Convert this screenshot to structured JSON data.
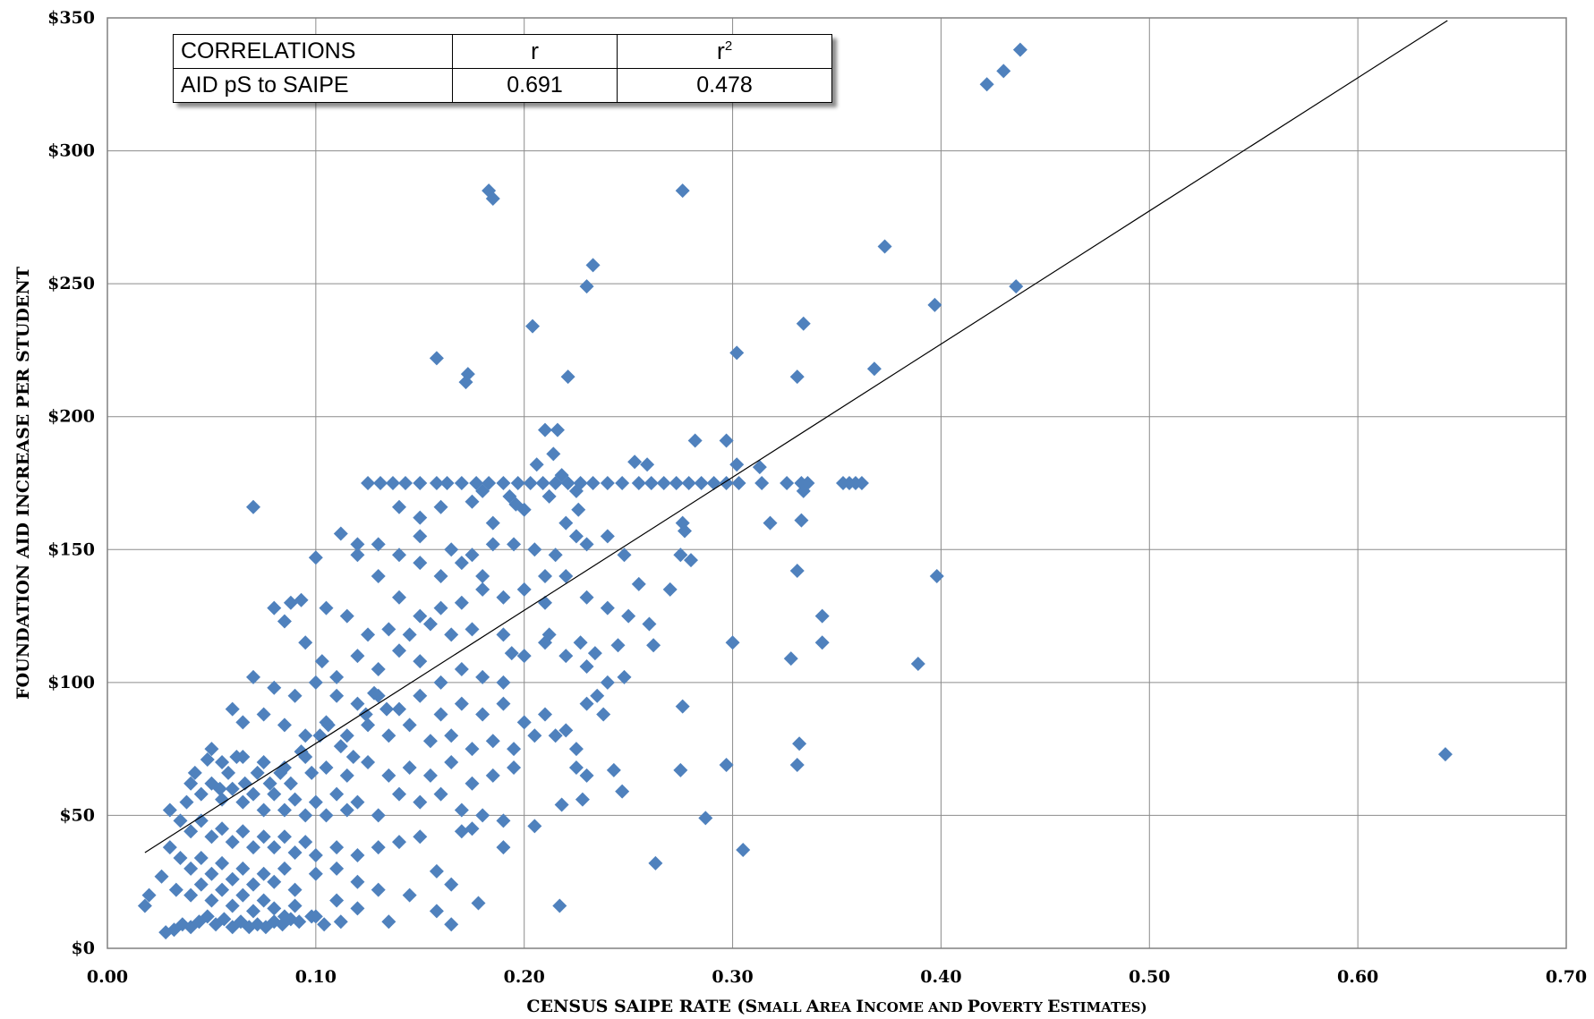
{
  "correlations": {
    "header": {
      "label": "CORRELATIONS",
      "r_symbol": "r",
      "r2_base": "r",
      "r2_exp": "2"
    },
    "row": {
      "label": "AID pS to SAIPE",
      "r": "0.691",
      "r2": "0.478"
    }
  },
  "chart_data": {
    "type": "scatter",
    "title": "",
    "xlabel_parts": [
      "CENSUS SAIPE RATE (",
      "S",
      "MALL ",
      "A",
      "REA ",
      "I",
      "NCOME AND ",
      "P",
      "OVERTY ",
      "E",
      "STIMATES)"
    ],
    "ylabel": "FOUNDATION AID INCREASE PER STUDENT",
    "xlim": [
      0,
      0.7
    ],
    "ylim": [
      0,
      350
    ],
    "x_ticks": [
      "0.00",
      "0.10",
      "0.20",
      "0.30",
      "0.40",
      "0.50",
      "0.60",
      "0.70"
    ],
    "y_ticks": [
      "$0",
      "$50",
      "$100",
      "$150",
      "$200",
      "$250",
      "$300",
      "$350"
    ],
    "grid": true,
    "marker_color": "#4F81BD",
    "trendline": {
      "x": [
        0.018,
        0.643
      ],
      "y": [
        36,
        349
      ]
    },
    "points": [
      [
        0.438,
        338
      ],
      [
        0.43,
        330
      ],
      [
        0.422,
        325
      ],
      [
        0.183,
        285
      ],
      [
        0.185,
        282
      ],
      [
        0.276,
        285
      ],
      [
        0.373,
        264
      ],
      [
        0.233,
        257
      ],
      [
        0.23,
        249
      ],
      [
        0.397,
        242
      ],
      [
        0.436,
        249
      ],
      [
        0.334,
        235
      ],
      [
        0.204,
        234
      ],
      [
        0.158,
        222
      ],
      [
        0.302,
        224
      ],
      [
        0.173,
        216
      ],
      [
        0.172,
        213
      ],
      [
        0.221,
        215
      ],
      [
        0.331,
        215
      ],
      [
        0.368,
        218
      ],
      [
        0.21,
        195
      ],
      [
        0.216,
        195
      ],
      [
        0.282,
        191
      ],
      [
        0.297,
        191
      ],
      [
        0.214,
        186
      ],
      [
        0.302,
        182
      ],
      [
        0.206,
        182
      ],
      [
        0.253,
        183
      ],
      [
        0.259,
        182
      ],
      [
        0.313,
        181
      ],
      [
        0.125,
        175
      ],
      [
        0.131,
        175
      ],
      [
        0.137,
        175
      ],
      [
        0.143,
        175
      ],
      [
        0.15,
        175
      ],
      [
        0.158,
        175
      ],
      [
        0.163,
        175
      ],
      [
        0.17,
        175
      ],
      [
        0.177,
        175
      ],
      [
        0.183,
        175
      ],
      [
        0.19,
        175
      ],
      [
        0.197,
        175
      ],
      [
        0.203,
        175
      ],
      [
        0.209,
        175
      ],
      [
        0.215,
        175
      ],
      [
        0.221,
        175
      ],
      [
        0.227,
        175
      ],
      [
        0.233,
        175
      ],
      [
        0.24,
        175
      ],
      [
        0.247,
        175
      ],
      [
        0.255,
        175
      ],
      [
        0.261,
        175
      ],
      [
        0.267,
        175
      ],
      [
        0.273,
        175
      ],
      [
        0.279,
        175
      ],
      [
        0.285,
        175
      ],
      [
        0.291,
        175
      ],
      [
        0.297,
        175
      ],
      [
        0.303,
        175
      ],
      [
        0.314,
        175
      ],
      [
        0.326,
        175
      ],
      [
        0.333,
        175
      ],
      [
        0.336,
        175
      ],
      [
        0.353,
        175
      ],
      [
        0.356,
        175
      ],
      [
        0.359,
        175
      ],
      [
        0.362,
        175
      ],
      [
        0.334,
        172
      ],
      [
        0.218,
        178
      ],
      [
        0.225,
        172
      ],
      [
        0.18,
        172
      ],
      [
        0.193,
        170
      ],
      [
        0.212,
        170
      ],
      [
        0.226,
        165
      ],
      [
        0.196,
        167
      ],
      [
        0.175,
        168
      ],
      [
        0.07,
        166
      ],
      [
        0.14,
        166
      ],
      [
        0.15,
        162
      ],
      [
        0.16,
        166
      ],
      [
        0.185,
        160
      ],
      [
        0.2,
        165
      ],
      [
        0.22,
        160
      ],
      [
        0.24,
        155
      ],
      [
        0.276,
        160
      ],
      [
        0.277,
        157
      ],
      [
        0.318,
        160
      ],
      [
        0.333,
        161
      ],
      [
        0.248,
        148
      ],
      [
        0.275,
        148
      ],
      [
        0.28,
        146
      ],
      [
        0.255,
        137
      ],
      [
        0.27,
        135
      ],
      [
        0.398,
        140
      ],
      [
        0.331,
        142
      ],
      [
        0.343,
        125
      ],
      [
        0.343,
        115
      ],
      [
        0.3,
        115
      ],
      [
        0.389,
        107
      ],
      [
        0.328,
        109
      ],
      [
        0.15,
        155
      ],
      [
        0.165,
        150
      ],
      [
        0.175,
        148
      ],
      [
        0.185,
        152
      ],
      [
        0.195,
        152
      ],
      [
        0.205,
        150
      ],
      [
        0.215,
        148
      ],
      [
        0.225,
        155
      ],
      [
        0.23,
        152
      ],
      [
        0.21,
        140
      ],
      [
        0.18,
        140
      ],
      [
        0.17,
        145
      ],
      [
        0.16,
        140
      ],
      [
        0.15,
        145
      ],
      [
        0.14,
        148
      ],
      [
        0.13,
        152
      ],
      [
        0.12,
        152
      ],
      [
        0.112,
        156
      ],
      [
        0.1,
        147
      ],
      [
        0.12,
        148
      ],
      [
        0.13,
        140
      ],
      [
        0.14,
        132
      ],
      [
        0.15,
        125
      ],
      [
        0.16,
        128
      ],
      [
        0.17,
        130
      ],
      [
        0.18,
        135
      ],
      [
        0.19,
        132
      ],
      [
        0.2,
        135
      ],
      [
        0.21,
        130
      ],
      [
        0.22,
        140
      ],
      [
        0.23,
        132
      ],
      [
        0.24,
        128
      ],
      [
        0.25,
        125
      ],
      [
        0.26,
        122
      ],
      [
        0.245,
        114
      ],
      [
        0.234,
        111
      ],
      [
        0.227,
        115
      ],
      [
        0.212,
        118
      ],
      [
        0.194,
        111
      ],
      [
        0.19,
        118
      ],
      [
        0.175,
        120
      ],
      [
        0.165,
        118
      ],
      [
        0.155,
        122
      ],
      [
        0.145,
        118
      ],
      [
        0.135,
        120
      ],
      [
        0.125,
        118
      ],
      [
        0.115,
        125
      ],
      [
        0.105,
        128
      ],
      [
        0.093,
        131
      ],
      [
        0.08,
        128
      ],
      [
        0.085,
        123
      ],
      [
        0.088,
        130
      ],
      [
        0.095,
        115
      ],
      [
        0.103,
        108
      ],
      [
        0.11,
        102
      ],
      [
        0.12,
        110
      ],
      [
        0.13,
        105
      ],
      [
        0.14,
        112
      ],
      [
        0.15,
        108
      ],
      [
        0.16,
        100
      ],
      [
        0.17,
        105
      ],
      [
        0.18,
        102
      ],
      [
        0.19,
        100
      ],
      [
        0.2,
        110
      ],
      [
        0.21,
        115
      ],
      [
        0.22,
        110
      ],
      [
        0.23,
        106
      ],
      [
        0.24,
        100
      ],
      [
        0.248,
        102
      ],
      [
        0.262,
        114
      ],
      [
        0.07,
        102
      ],
      [
        0.08,
        98
      ],
      [
        0.09,
        95
      ],
      [
        0.1,
        100
      ],
      [
        0.11,
        95
      ],
      [
        0.12,
        92
      ],
      [
        0.13,
        95
      ],
      [
        0.14,
        90
      ],
      [
        0.15,
        95
      ],
      [
        0.16,
        88
      ],
      [
        0.17,
        92
      ],
      [
        0.18,
        88
      ],
      [
        0.19,
        92
      ],
      [
        0.2,
        85
      ],
      [
        0.21,
        88
      ],
      [
        0.22,
        82
      ],
      [
        0.23,
        92
      ],
      [
        0.235,
        95
      ],
      [
        0.238,
        88
      ],
      [
        0.276,
        91
      ],
      [
        0.06,
        90
      ],
      [
        0.065,
        85
      ],
      [
        0.075,
        88
      ],
      [
        0.085,
        84
      ],
      [
        0.095,
        80
      ],
      [
        0.105,
        85
      ],
      [
        0.115,
        80
      ],
      [
        0.125,
        84
      ],
      [
        0.135,
        80
      ],
      [
        0.145,
        84
      ],
      [
        0.155,
        78
      ],
      [
        0.165,
        80
      ],
      [
        0.175,
        75
      ],
      [
        0.185,
        78
      ],
      [
        0.195,
        75
      ],
      [
        0.205,
        80
      ],
      [
        0.215,
        80
      ],
      [
        0.225,
        75
      ],
      [
        0.332,
        77
      ],
      [
        0.331,
        69
      ],
      [
        0.05,
        75
      ],
      [
        0.055,
        70
      ],
      [
        0.065,
        72
      ],
      [
        0.075,
        70
      ],
      [
        0.085,
        68
      ],
      [
        0.095,
        72
      ],
      [
        0.105,
        68
      ],
      [
        0.115,
        65
      ],
      [
        0.125,
        70
      ],
      [
        0.135,
        65
      ],
      [
        0.145,
        68
      ],
      [
        0.155,
        65
      ],
      [
        0.165,
        70
      ],
      [
        0.175,
        62
      ],
      [
        0.185,
        65
      ],
      [
        0.195,
        68
      ],
      [
        0.225,
        68
      ],
      [
        0.23,
        65
      ],
      [
        0.243,
        67
      ],
      [
        0.275,
        67
      ],
      [
        0.297,
        69
      ],
      [
        0.04,
        62
      ],
      [
        0.045,
        58
      ],
      [
        0.05,
        62
      ],
      [
        0.055,
        56
      ],
      [
        0.06,
        60
      ],
      [
        0.065,
        55
      ],
      [
        0.07,
        58
      ],
      [
        0.075,
        52
      ],
      [
        0.08,
        58
      ],
      [
        0.085,
        52
      ],
      [
        0.09,
        56
      ],
      [
        0.095,
        50
      ],
      [
        0.1,
        55
      ],
      [
        0.105,
        50
      ],
      [
        0.11,
        58
      ],
      [
        0.115,
        52
      ],
      [
        0.12,
        55
      ],
      [
        0.13,
        50
      ],
      [
        0.14,
        58
      ],
      [
        0.15,
        55
      ],
      [
        0.16,
        58
      ],
      [
        0.17,
        52
      ],
      [
        0.18,
        50
      ],
      [
        0.19,
        48
      ],
      [
        0.205,
        46
      ],
      [
        0.218,
        54
      ],
      [
        0.228,
        56
      ],
      [
        0.247,
        59
      ],
      [
        0.287,
        49
      ],
      [
        0.03,
        52
      ],
      [
        0.035,
        48
      ],
      [
        0.04,
        44
      ],
      [
        0.045,
        48
      ],
      [
        0.05,
        42
      ],
      [
        0.055,
        45
      ],
      [
        0.06,
        40
      ],
      [
        0.065,
        44
      ],
      [
        0.07,
        38
      ],
      [
        0.075,
        42
      ],
      [
        0.08,
        38
      ],
      [
        0.085,
        42
      ],
      [
        0.09,
        36
      ],
      [
        0.095,
        40
      ],
      [
        0.1,
        35
      ],
      [
        0.11,
        38
      ],
      [
        0.12,
        35
      ],
      [
        0.13,
        38
      ],
      [
        0.14,
        40
      ],
      [
        0.15,
        42
      ],
      [
        0.17,
        44
      ],
      [
        0.175,
        45
      ],
      [
        0.19,
        38
      ],
      [
        0.263,
        32
      ],
      [
        0.305,
        37
      ],
      [
        0.03,
        38
      ],
      [
        0.035,
        34
      ],
      [
        0.04,
        30
      ],
      [
        0.045,
        34
      ],
      [
        0.05,
        28
      ],
      [
        0.055,
        32
      ],
      [
        0.06,
        26
      ],
      [
        0.065,
        30
      ],
      [
        0.07,
        24
      ],
      [
        0.075,
        28
      ],
      [
        0.08,
        25
      ],
      [
        0.085,
        30
      ],
      [
        0.09,
        22
      ],
      [
        0.1,
        28
      ],
      [
        0.11,
        30
      ],
      [
        0.12,
        25
      ],
      [
        0.13,
        22
      ],
      [
        0.145,
        20
      ],
      [
        0.158,
        29
      ],
      [
        0.165,
        24
      ],
      [
        0.018,
        16
      ],
      [
        0.02,
        20
      ],
      [
        0.026,
        27
      ],
      [
        0.033,
        22
      ],
      [
        0.04,
        20
      ],
      [
        0.045,
        24
      ],
      [
        0.05,
        18
      ],
      [
        0.055,
        22
      ],
      [
        0.06,
        16
      ],
      [
        0.065,
        20
      ],
      [
        0.07,
        14
      ],
      [
        0.075,
        18
      ],
      [
        0.08,
        15
      ],
      [
        0.085,
        12
      ],
      [
        0.09,
        16
      ],
      [
        0.1,
        12
      ],
      [
        0.11,
        18
      ],
      [
        0.12,
        15
      ],
      [
        0.135,
        10
      ],
      [
        0.158,
        14
      ],
      [
        0.165,
        9
      ],
      [
        0.178,
        17
      ],
      [
        0.217,
        16
      ],
      [
        0.028,
        6
      ],
      [
        0.032,
        7
      ],
      [
        0.036,
        9
      ],
      [
        0.04,
        8
      ],
      [
        0.044,
        10
      ],
      [
        0.048,
        12
      ],
      [
        0.052,
        9
      ],
      [
        0.056,
        11
      ],
      [
        0.06,
        8
      ],
      [
        0.064,
        10
      ],
      [
        0.068,
        8
      ],
      [
        0.072,
        9
      ],
      [
        0.076,
        8
      ],
      [
        0.08,
        10
      ],
      [
        0.084,
        9
      ],
      [
        0.088,
        11
      ],
      [
        0.092,
        10
      ],
      [
        0.098,
        12
      ],
      [
        0.104,
        9
      ],
      [
        0.112,
        10
      ],
      [
        0.038,
        55
      ],
      [
        0.042,
        66
      ],
      [
        0.048,
        71
      ],
      [
        0.054,
        60
      ],
      [
        0.058,
        66
      ],
      [
        0.062,
        72
      ],
      [
        0.066,
        62
      ],
      [
        0.072,
        66
      ],
      [
        0.078,
        62
      ],
      [
        0.083,
        66
      ],
      [
        0.088,
        62
      ],
      [
        0.093,
        74
      ],
      [
        0.098,
        66
      ],
      [
        0.102,
        80
      ],
      [
        0.106,
        84
      ],
      [
        0.112,
        76
      ],
      [
        0.118,
        72
      ],
      [
        0.124,
        88
      ],
      [
        0.128,
        96
      ],
      [
        0.134,
        90
      ],
      [
        0.642,
        73
      ]
    ]
  }
}
